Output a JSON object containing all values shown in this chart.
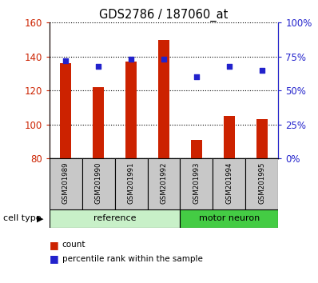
{
  "title": "GDS2786 / 187060_at",
  "samples": [
    "GSM201989",
    "GSM201990",
    "GSM201991",
    "GSM201992",
    "GSM201993",
    "GSM201994",
    "GSM201995"
  ],
  "count_values": [
    136,
    122,
    137,
    150,
    91,
    105,
    103
  ],
  "percentile_values": [
    72,
    68,
    73,
    73,
    60,
    68,
    65
  ],
  "ref_count": 4,
  "motor_count": 3,
  "bar_bottom": 80,
  "ylim_left": [
    80,
    160
  ],
  "ylim_right": [
    0,
    100
  ],
  "yticks_left": [
    80,
    100,
    120,
    140,
    160
  ],
  "yticks_right": [
    0,
    25,
    50,
    75,
    100
  ],
  "yticklabels_right": [
    "0%",
    "25%",
    "50%",
    "75%",
    "100%"
  ],
  "bar_color": "#cc2200",
  "dot_color": "#2222cc",
  "tick_color_left": "#cc2200",
  "tick_color_right": "#2222cc",
  "bar_width": 0.35,
  "sample_box_color": "#c8c8c8",
  "ref_box_color": "#c8f0c8",
  "motor_box_color": "#44cc44",
  "label_count": "count",
  "label_percentile": "percentile rank within the sample",
  "cell_type_label": "cell type"
}
